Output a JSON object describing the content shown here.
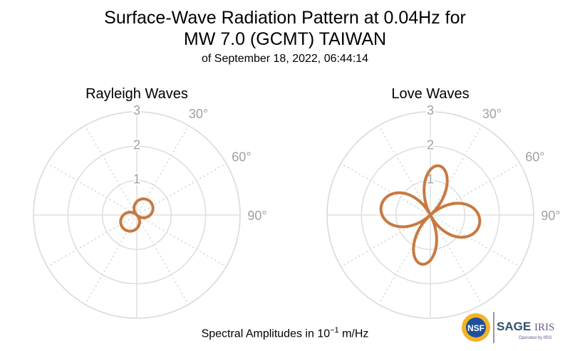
{
  "title": {
    "line1": "Surface-Wave Radiation Pattern at 0.04Hz for",
    "line2": "MW 7.0 (GCMT) TAIWAN",
    "subtitle": "of September 18, 2022, 06:44:14"
  },
  "footer": {
    "prefix": "Spectral Amplitudes in 10",
    "exponent": "−1",
    "unit": " m/Hz"
  },
  "logos": {
    "nsf": "NSF",
    "sage": "SAGE",
    "iris": "IRIS",
    "operated": "Operated by IRIS"
  },
  "chart_data": [
    {
      "type": "polar",
      "title": "Rayleigh Waves",
      "radial_ticks": [
        "1",
        "2",
        "3"
      ],
      "rlim": [
        0,
        3
      ],
      "angle_ticks": [
        "30°",
        "60°",
        "90°"
      ],
      "grid": true,
      "color": "#c87941",
      "series": [
        {
          "shape": "two-lobe",
          "lobe_azimuths_deg": [
            45,
            225
          ],
          "peak_amplitude": 0.55
        }
      ]
    },
    {
      "type": "polar",
      "title": "Love Waves",
      "radial_ticks": [
        "1",
        "2",
        "3"
      ],
      "rlim": [
        0,
        3
      ],
      "angle_ticks": [
        "30°",
        "60°",
        "90°"
      ],
      "grid": true,
      "color": "#c87941",
      "series": [
        {
          "shape": "four-lobe",
          "lobe_azimuths_deg": [
            10,
            110,
            190,
            290
          ],
          "peak_amplitude": 1.45
        }
      ]
    }
  ]
}
